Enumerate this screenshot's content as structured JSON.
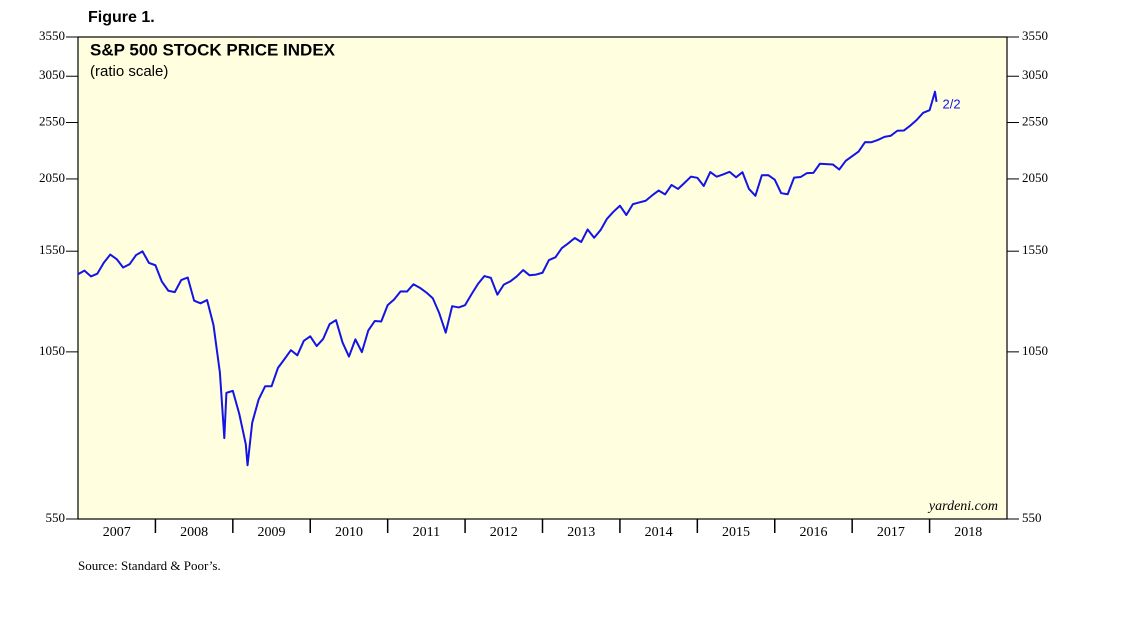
{
  "figure_label": "Figure 1.",
  "chart_data": {
    "type": "line",
    "title": "S&P 500 STOCK PRICE INDEX",
    "subtitle": "(ratio scale)",
    "log_scale": true,
    "color": "#1414e6",
    "annotation": "2/2",
    "watermark": "yardeni.com",
    "source": "Source: Standard & Poor’s.",
    "xlim": [
      2007,
      2019
    ],
    "xticks": [
      {
        "value": 2007.5,
        "label": "2007"
      },
      {
        "value": 2008.5,
        "label": "2008"
      },
      {
        "value": 2009.5,
        "label": "2009"
      },
      {
        "value": 2010.5,
        "label": "2010"
      },
      {
        "value": 2011.5,
        "label": "2011"
      },
      {
        "value": 2012.5,
        "label": "2012"
      },
      {
        "value": 2013.5,
        "label": "2013"
      },
      {
        "value": 2014.5,
        "label": "2014"
      },
      {
        "value": 2015.5,
        "label": "2015"
      },
      {
        "value": 2016.5,
        "label": "2016"
      },
      {
        "value": 2017.5,
        "label": "2017"
      },
      {
        "value": 2018.5,
        "label": "2018"
      }
    ],
    "xminorticks": [
      2008,
      2009,
      2010,
      2011,
      2012,
      2013,
      2014,
      2015,
      2016,
      2017,
      2018
    ],
    "ylim": [
      550,
      3550
    ],
    "yticks": [
      550,
      1050,
      1550,
      2050,
      2550,
      3050,
      3550
    ],
    "x": [
      2007.0,
      2007.083,
      2007.167,
      2007.25,
      2007.333,
      2007.417,
      2007.5,
      2007.583,
      2007.667,
      2007.75,
      2007.833,
      2007.917,
      2008.0,
      2008.083,
      2008.167,
      2008.25,
      2008.333,
      2008.417,
      2008.5,
      2008.583,
      2008.667,
      2008.75,
      2008.833,
      2008.89,
      2008.917,
      2009.0,
      2009.083,
      2009.167,
      2009.19,
      2009.25,
      2009.333,
      2009.417,
      2009.5,
      2009.583,
      2009.667,
      2009.75,
      2009.833,
      2009.917,
      2010.0,
      2010.083,
      2010.167,
      2010.25,
      2010.333,
      2010.417,
      2010.5,
      2010.583,
      2010.667,
      2010.75,
      2010.833,
      2010.917,
      2011.0,
      2011.083,
      2011.167,
      2011.25,
      2011.333,
      2011.417,
      2011.5,
      2011.583,
      2011.667,
      2011.75,
      2011.833,
      2011.917,
      2012.0,
      2012.083,
      2012.167,
      2012.25,
      2012.333,
      2012.417,
      2012.5,
      2012.583,
      2012.667,
      2012.75,
      2012.833,
      2012.917,
      2013.0,
      2013.083,
      2013.167,
      2013.25,
      2013.333,
      2013.417,
      2013.5,
      2013.583,
      2013.667,
      2013.75,
      2013.833,
      2013.917,
      2014.0,
      2014.083,
      2014.167,
      2014.25,
      2014.333,
      2014.417,
      2014.5,
      2014.583,
      2014.667,
      2014.75,
      2014.833,
      2014.917,
      2015.0,
      2015.083,
      2015.167,
      2015.25,
      2015.333,
      2015.417,
      2015.5,
      2015.583,
      2015.667,
      2015.75,
      2015.833,
      2015.917,
      2016.0,
      2016.083,
      2016.167,
      2016.25,
      2016.333,
      2016.417,
      2016.5,
      2016.583,
      2016.667,
      2016.75,
      2016.833,
      2016.917,
      2017.0,
      2017.083,
      2017.167,
      2017.25,
      2017.333,
      2017.417,
      2017.5,
      2017.583,
      2017.667,
      2017.75,
      2017.833,
      2017.917,
      2018.0,
      2018.07,
      2018.09
    ],
    "values": [
      1418,
      1438,
      1406,
      1421,
      1482,
      1530,
      1503,
      1455,
      1474,
      1527,
      1549,
      1481,
      1468,
      1378,
      1330,
      1323,
      1386,
      1400,
      1280,
      1267,
      1283,
      1165,
      969,
      752,
      896,
      903,
      826,
      735,
      677,
      798,
      873,
      919,
      919,
      987,
      1021,
      1057,
      1036,
      1096,
      1115,
      1074,
      1104,
      1169,
      1187,
      1089,
      1031,
      1102,
      1049,
      1141,
      1183,
      1181,
      1258,
      1286,
      1327,
      1326,
      1364,
      1345,
      1321,
      1292,
      1219,
      1131,
      1253,
      1247,
      1258,
      1312,
      1366,
      1408,
      1398,
      1310,
      1362,
      1379,
      1406,
      1441,
      1412,
      1416,
      1426,
      1498,
      1514,
      1569,
      1598,
      1631,
      1606,
      1686,
      1633,
      1682,
      1757,
      1806,
      1848,
      1783,
      1859,
      1872,
      1884,
      1924,
      1960,
      1931,
      2003,
      1972,
      2018,
      2068,
      2059,
      1995,
      2105,
      2068,
      2086,
      2107,
      2063,
      2104,
      1972,
      1920,
      2079,
      2080,
      2044,
      1940,
      1932,
      2060,
      2065,
      2097,
      2099,
      2174,
      2171,
      2168,
      2126,
      2199,
      2239,
      2279,
      2364,
      2363,
      2384,
      2412,
      2423,
      2470,
      2472,
      2519,
      2575,
      2648,
      2674,
      2873,
      2762
    ]
  }
}
